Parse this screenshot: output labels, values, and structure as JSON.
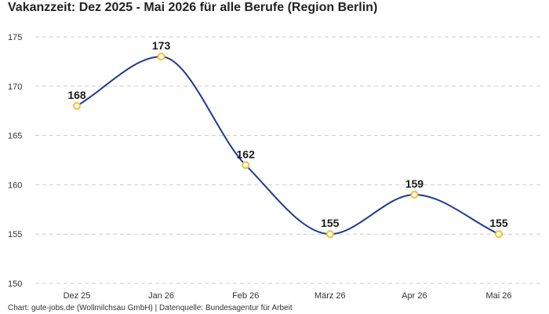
{
  "title": "Vakanzzeit: Dez 2025 - Mai 2026 für alle Berufe (Region Berlin)",
  "footer": "Chart: gute-jobs.de (Wollmilchsau GmbH) | Datenquelle: Bundesagentur für Arbeit",
  "colors": {
    "line": "#1f3a93",
    "marker_stroke": "#f2c12e",
    "marker_fill": "#ffffff",
    "grid": "#cccccc"
  },
  "chart_data": {
    "type": "line",
    "categories": [
      "Dez 25",
      "Jan 26",
      "Feb 26",
      "März 26",
      "Apr 26",
      "Mai 26"
    ],
    "values": [
      168,
      173,
      162,
      155,
      159,
      155
    ],
    "ylim": [
      150,
      175
    ],
    "yticks": [
      150,
      155,
      160,
      165,
      170,
      175
    ],
    "grid": true,
    "grid_style": "dashed",
    "smooth": true,
    "data_labels": true,
    "legend": "none"
  }
}
